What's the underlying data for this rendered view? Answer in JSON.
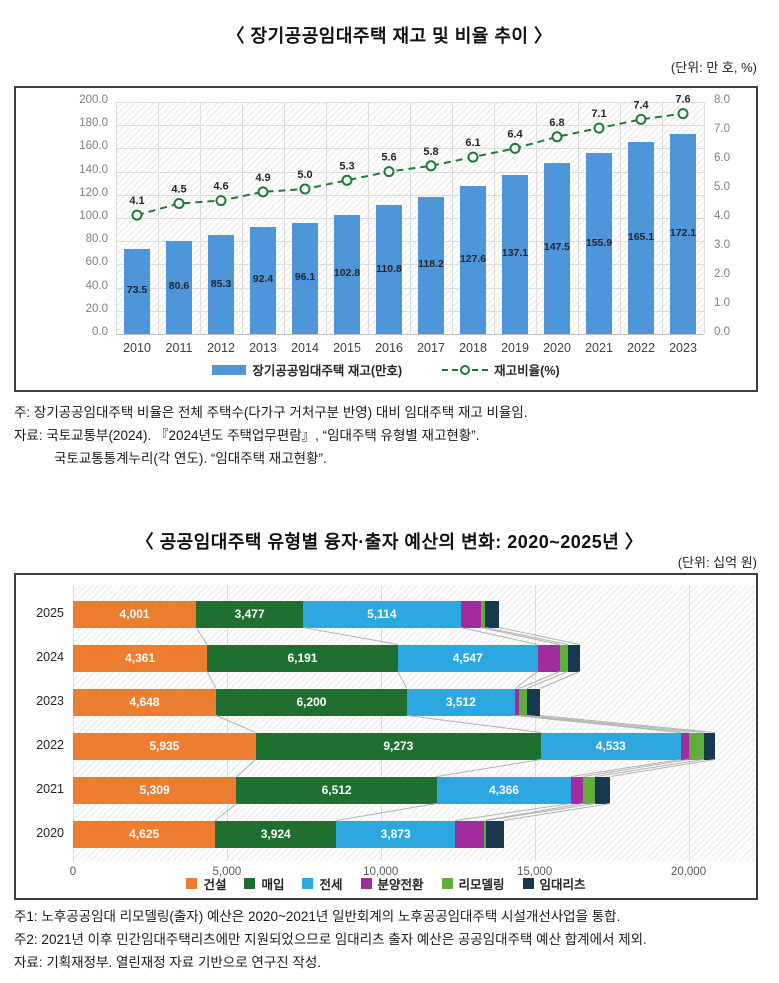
{
  "page": {
    "chart1": {
      "title": "〈 장기공공임대주택 재고 및 비율 추이 〉",
      "unit": "(단위: 만 호, %)",
      "notes": [
        "주: 장기공공임대주택 비율은 전체 주택수(다가구 거처구분 반영) 대비 임대주택 재고 비율임.",
        "자료: 국토교통부(2024). 『2024년도 주택업무편람』, “임대주택 유형별 재고현황”.",
        "국토교통통계누리(각 연도). “임대주택 재고현황”."
      ]
    },
    "chart2": {
      "title": "〈 공공임대주택 유형별 융자·출자 예산의 변화: 2020~2025년 〉",
      "unit": "(단위: 십억 원)",
      "notes": [
        "주1: 노후공공임대 리모델링(출자) 예산은 2020~2021년 일반회계의 노후공공임대주택 시설개선사업을 통합.",
        "주2: 2021년 이후 민간임대주택리츠에만 지원되었으므로 임대리츠 출자 예산은 공공임대주택 예산 합계에서 제외.",
        "자료: 기획재정부. 열린재정 자료 기반으로 연구진 작성."
      ]
    }
  },
  "chart_data": [
    {
      "type": "combo-bar-line",
      "title": "장기공공임대주택 재고 및 비율 추이",
      "categories": [
        "2010",
        "2011",
        "2012",
        "2013",
        "2014",
        "2015",
        "2016",
        "2017",
        "2018",
        "2019",
        "2020",
        "2021",
        "2022",
        "2023"
      ],
      "series": [
        {
          "name": "장기공공임대주택 재고(만호)",
          "type": "bar",
          "axis": "left",
          "color": "#4e95d9",
          "values": [
            73.5,
            80.6,
            85.3,
            92.4,
            96.1,
            102.8,
            110.8,
            118.2,
            127.6,
            137.1,
            147.5,
            155.9,
            165.1,
            172.1
          ]
        },
        {
          "name": "재고비율(%)",
          "type": "line",
          "axis": "right",
          "color": "#1e7a36",
          "dashed": true,
          "values": [
            4.1,
            4.5,
            4.6,
            4.9,
            5.0,
            5.3,
            5.6,
            5.8,
            6.1,
            6.4,
            6.8,
            7.1,
            7.4,
            7.6
          ]
        }
      ],
      "left_axis": {
        "min": 0,
        "max": 200,
        "step": 20,
        "decimals": 1
      },
      "right_axis": {
        "min": 0,
        "max": 8,
        "step": 1,
        "decimals": 1
      },
      "grid": true,
      "legend_position": "bottom"
    },
    {
      "type": "stacked-bar-horizontal",
      "title": "공공임대주택 유형별 융자·출자 예산의 변화: 2020~2025년",
      "categories": [
        "2025",
        "2024",
        "2023",
        "2022",
        "2021",
        "2020"
      ],
      "series": [
        {
          "name": "건설",
          "color": "#ed7d31",
          "labeled": true,
          "values": [
            4001,
            4361,
            4648,
            5935,
            5309,
            4625
          ]
        },
        {
          "name": "매입",
          "color": "#1f7030",
          "labeled": true,
          "values": [
            3477,
            6191,
            6200,
            9273,
            6512,
            3924
          ]
        },
        {
          "name": "전세",
          "color": "#2da7df",
          "labeled": true,
          "values": [
            5114,
            4547,
            3512,
            4533,
            4366,
            3873
          ]
        },
        {
          "name": "분양전환",
          "color": "#a22b9d",
          "labeled": false,
          "values": [
            650,
            715,
            130,
            260,
            390,
            940
          ]
        },
        {
          "name": "리모델링",
          "color": "#5fad3b",
          "labeled": false,
          "values": [
            160,
            260,
            260,
            490,
            390,
            65
          ]
        },
        {
          "name": "임대리츠",
          "color": "#17384f",
          "labeled": false,
          "values": [
            450,
            390,
            420,
            360,
            490,
            580
          ]
        }
      ],
      "x_axis": {
        "min": 0,
        "max": 21900,
        "ticks": [
          0,
          5000,
          10000,
          15000,
          20000
        ],
        "tick_labels": [
          "0",
          "5,000",
          "10,000",
          "15,000",
          "20,000"
        ]
      },
      "series_connector_lines": true,
      "grid": true,
      "legend_position": "bottom"
    }
  ]
}
